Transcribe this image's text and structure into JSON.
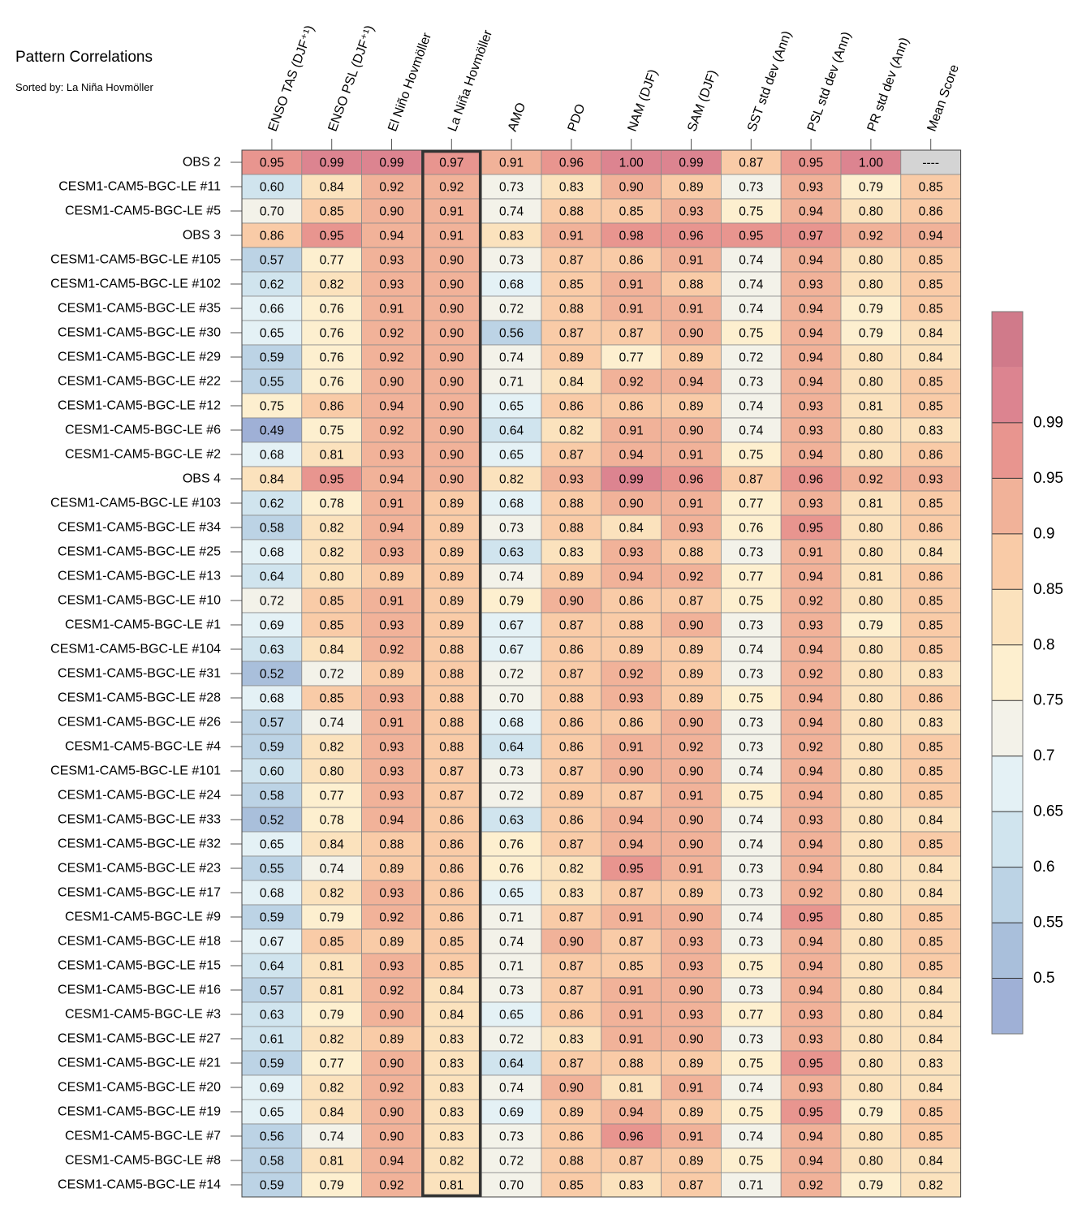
{
  "title": "Pattern Correlations",
  "subtitle": "Sorted by: La Niña Hovmöller",
  "colors": {
    "bins": [
      "#9fb0d6",
      "#a9bfdb",
      "#bcd3e5",
      "#d0e4ee",
      "#e4f1f5",
      "#f3f2e9",
      "#fdefcf",
      "#fbe2bd",
      "#f9cba7",
      "#f1b299",
      "#e8958f",
      "#dc8490",
      "#d07a8a"
    ],
    "missing": "#d4d4d4",
    "highlight_border": "#333333",
    "grid": "#8a8a8a"
  },
  "chart_data": {
    "type": "heatmap",
    "highlight_column": "La Niña Hovmöller",
    "columns": [
      "ENSO TAS (DJF⁺¹)",
      "ENSO PSL (DJF⁺¹)",
      "El Niño Hovmöller",
      "La Niña Hovmöller",
      "AMO",
      "PDO",
      "NAM (DJF)",
      "SAM (DJF)",
      "SST std dev (Ann)",
      "PSL std dev (Ann)",
      "PR std dev (Ann)",
      "Mean Score"
    ],
    "rows": [
      {
        "label": "OBS 2",
        "values": [
          "0.95",
          "0.99",
          "0.99",
          "0.97",
          "0.91",
          "0.96",
          "1.00",
          "0.99",
          "0.87",
          "0.95",
          "1.00",
          "----"
        ]
      },
      {
        "label": "CESM1-CAM5-BGC-LE #11",
        "values": [
          "0.60",
          "0.84",
          "0.92",
          "0.92",
          "0.73",
          "0.83",
          "0.90",
          "0.89",
          "0.73",
          "0.93",
          "0.79",
          "0.85"
        ]
      },
      {
        "label": "CESM1-CAM5-BGC-LE #5",
        "values": [
          "0.70",
          "0.85",
          "0.90",
          "0.91",
          "0.74",
          "0.88",
          "0.85",
          "0.93",
          "0.75",
          "0.94",
          "0.80",
          "0.86"
        ]
      },
      {
        "label": "OBS 3",
        "values": [
          "0.86",
          "0.95",
          "0.94",
          "0.91",
          "0.83",
          "0.91",
          "0.98",
          "0.96",
          "0.95",
          "0.97",
          "0.92",
          "0.94"
        ]
      },
      {
        "label": "CESM1-CAM5-BGC-LE #105",
        "values": [
          "0.57",
          "0.77",
          "0.93",
          "0.90",
          "0.73",
          "0.87",
          "0.86",
          "0.91",
          "0.74",
          "0.94",
          "0.80",
          "0.85"
        ]
      },
      {
        "label": "CESM1-CAM5-BGC-LE #102",
        "values": [
          "0.62",
          "0.82",
          "0.93",
          "0.90",
          "0.68",
          "0.85",
          "0.91",
          "0.88",
          "0.74",
          "0.93",
          "0.80",
          "0.85"
        ]
      },
      {
        "label": "CESM1-CAM5-BGC-LE #35",
        "values": [
          "0.66",
          "0.76",
          "0.91",
          "0.90",
          "0.72",
          "0.88",
          "0.91",
          "0.91",
          "0.74",
          "0.94",
          "0.79",
          "0.85"
        ]
      },
      {
        "label": "CESM1-CAM5-BGC-LE #30",
        "values": [
          "0.65",
          "0.76",
          "0.92",
          "0.90",
          "0.56",
          "0.87",
          "0.87",
          "0.90",
          "0.75",
          "0.94",
          "0.79",
          "0.84"
        ]
      },
      {
        "label": "CESM1-CAM5-BGC-LE #29",
        "values": [
          "0.59",
          "0.76",
          "0.92",
          "0.90",
          "0.74",
          "0.89",
          "0.77",
          "0.89",
          "0.72",
          "0.94",
          "0.80",
          "0.84"
        ]
      },
      {
        "label": "CESM1-CAM5-BGC-LE #22",
        "values": [
          "0.55",
          "0.76",
          "0.90",
          "0.90",
          "0.71",
          "0.84",
          "0.92",
          "0.94",
          "0.73",
          "0.94",
          "0.80",
          "0.85"
        ]
      },
      {
        "label": "CESM1-CAM5-BGC-LE #12",
        "values": [
          "0.75",
          "0.86",
          "0.94",
          "0.90",
          "0.65",
          "0.86",
          "0.86",
          "0.89",
          "0.74",
          "0.93",
          "0.81",
          "0.85"
        ]
      },
      {
        "label": "CESM1-CAM5-BGC-LE #6",
        "values": [
          "0.49",
          "0.75",
          "0.92",
          "0.90",
          "0.64",
          "0.82",
          "0.91",
          "0.90",
          "0.74",
          "0.93",
          "0.80",
          "0.83"
        ]
      },
      {
        "label": "CESM1-CAM5-BGC-LE #2",
        "values": [
          "0.68",
          "0.81",
          "0.93",
          "0.90",
          "0.65",
          "0.87",
          "0.94",
          "0.91",
          "0.75",
          "0.94",
          "0.80",
          "0.86"
        ]
      },
      {
        "label": "OBS 4",
        "values": [
          "0.84",
          "0.95",
          "0.94",
          "0.90",
          "0.82",
          "0.93",
          "0.99",
          "0.96",
          "0.87",
          "0.96",
          "0.92",
          "0.93"
        ]
      },
      {
        "label": "CESM1-CAM5-BGC-LE #103",
        "values": [
          "0.62",
          "0.78",
          "0.91",
          "0.89",
          "0.68",
          "0.88",
          "0.90",
          "0.91",
          "0.77",
          "0.93",
          "0.81",
          "0.85"
        ]
      },
      {
        "label": "CESM1-CAM5-BGC-LE #34",
        "values": [
          "0.58",
          "0.82",
          "0.94",
          "0.89",
          "0.73",
          "0.88",
          "0.84",
          "0.93",
          "0.76",
          "0.95",
          "0.80",
          "0.86"
        ]
      },
      {
        "label": "CESM1-CAM5-BGC-LE #25",
        "values": [
          "0.68",
          "0.82",
          "0.93",
          "0.89",
          "0.63",
          "0.83",
          "0.93",
          "0.88",
          "0.73",
          "0.91",
          "0.80",
          "0.84"
        ]
      },
      {
        "label": "CESM1-CAM5-BGC-LE #13",
        "values": [
          "0.64",
          "0.80",
          "0.89",
          "0.89",
          "0.74",
          "0.89",
          "0.94",
          "0.92",
          "0.77",
          "0.94",
          "0.81",
          "0.86"
        ]
      },
      {
        "label": "CESM1-CAM5-BGC-LE #10",
        "values": [
          "0.72",
          "0.85",
          "0.91",
          "0.89",
          "0.79",
          "0.90",
          "0.86",
          "0.87",
          "0.75",
          "0.92",
          "0.80",
          "0.85"
        ]
      },
      {
        "label": "CESM1-CAM5-BGC-LE #1",
        "values": [
          "0.69",
          "0.85",
          "0.93",
          "0.89",
          "0.67",
          "0.87",
          "0.88",
          "0.90",
          "0.73",
          "0.93",
          "0.79",
          "0.85"
        ]
      },
      {
        "label": "CESM1-CAM5-BGC-LE #104",
        "values": [
          "0.63",
          "0.84",
          "0.92",
          "0.88",
          "0.67",
          "0.86",
          "0.89",
          "0.89",
          "0.74",
          "0.94",
          "0.80",
          "0.85"
        ]
      },
      {
        "label": "CESM1-CAM5-BGC-LE #31",
        "values": [
          "0.52",
          "0.72",
          "0.89",
          "0.88",
          "0.72",
          "0.87",
          "0.92",
          "0.89",
          "0.73",
          "0.92",
          "0.80",
          "0.83"
        ]
      },
      {
        "label": "CESM1-CAM5-BGC-LE #28",
        "values": [
          "0.68",
          "0.85",
          "0.93",
          "0.88",
          "0.70",
          "0.88",
          "0.93",
          "0.89",
          "0.75",
          "0.94",
          "0.80",
          "0.86"
        ]
      },
      {
        "label": "CESM1-CAM5-BGC-LE #26",
        "values": [
          "0.57",
          "0.74",
          "0.91",
          "0.88",
          "0.68",
          "0.86",
          "0.86",
          "0.90",
          "0.73",
          "0.94",
          "0.80",
          "0.83"
        ]
      },
      {
        "label": "CESM1-CAM5-BGC-LE #4",
        "values": [
          "0.59",
          "0.82",
          "0.93",
          "0.88",
          "0.64",
          "0.86",
          "0.91",
          "0.92",
          "0.73",
          "0.92",
          "0.80",
          "0.85"
        ]
      },
      {
        "label": "CESM1-CAM5-BGC-LE #101",
        "values": [
          "0.60",
          "0.80",
          "0.93",
          "0.87",
          "0.73",
          "0.87",
          "0.90",
          "0.90",
          "0.74",
          "0.94",
          "0.80",
          "0.85"
        ]
      },
      {
        "label": "CESM1-CAM5-BGC-LE #24",
        "values": [
          "0.58",
          "0.77",
          "0.93",
          "0.87",
          "0.72",
          "0.89",
          "0.87",
          "0.91",
          "0.75",
          "0.94",
          "0.80",
          "0.85"
        ]
      },
      {
        "label": "CESM1-CAM5-BGC-LE #33",
        "values": [
          "0.52",
          "0.78",
          "0.94",
          "0.86",
          "0.63",
          "0.86",
          "0.94",
          "0.90",
          "0.74",
          "0.93",
          "0.80",
          "0.84"
        ]
      },
      {
        "label": "CESM1-CAM5-BGC-LE #32",
        "values": [
          "0.65",
          "0.84",
          "0.88",
          "0.86",
          "0.76",
          "0.87",
          "0.94",
          "0.90",
          "0.74",
          "0.94",
          "0.80",
          "0.85"
        ]
      },
      {
        "label": "CESM1-CAM5-BGC-LE #23",
        "values": [
          "0.55",
          "0.74",
          "0.89",
          "0.86",
          "0.76",
          "0.82",
          "0.95",
          "0.91",
          "0.73",
          "0.94",
          "0.80",
          "0.84"
        ]
      },
      {
        "label": "CESM1-CAM5-BGC-LE #17",
        "values": [
          "0.68",
          "0.82",
          "0.93",
          "0.86",
          "0.65",
          "0.83",
          "0.87",
          "0.89",
          "0.73",
          "0.92",
          "0.80",
          "0.84"
        ]
      },
      {
        "label": "CESM1-CAM5-BGC-LE #9",
        "values": [
          "0.59",
          "0.79",
          "0.92",
          "0.86",
          "0.71",
          "0.87",
          "0.91",
          "0.90",
          "0.74",
          "0.95",
          "0.80",
          "0.85"
        ]
      },
      {
        "label": "CESM1-CAM5-BGC-LE #18",
        "values": [
          "0.67",
          "0.85",
          "0.89",
          "0.85",
          "0.74",
          "0.90",
          "0.87",
          "0.93",
          "0.73",
          "0.94",
          "0.80",
          "0.85"
        ]
      },
      {
        "label": "CESM1-CAM5-BGC-LE #15",
        "values": [
          "0.64",
          "0.81",
          "0.93",
          "0.85",
          "0.71",
          "0.87",
          "0.85",
          "0.93",
          "0.75",
          "0.94",
          "0.80",
          "0.85"
        ]
      },
      {
        "label": "CESM1-CAM5-BGC-LE #16",
        "values": [
          "0.57",
          "0.81",
          "0.92",
          "0.84",
          "0.73",
          "0.87",
          "0.91",
          "0.90",
          "0.73",
          "0.94",
          "0.80",
          "0.84"
        ]
      },
      {
        "label": "CESM1-CAM5-BGC-LE #3",
        "values": [
          "0.63",
          "0.79",
          "0.90",
          "0.84",
          "0.65",
          "0.86",
          "0.91",
          "0.93",
          "0.77",
          "0.93",
          "0.80",
          "0.84"
        ]
      },
      {
        "label": "CESM1-CAM5-BGC-LE #27",
        "values": [
          "0.61",
          "0.82",
          "0.89",
          "0.83",
          "0.72",
          "0.83",
          "0.91",
          "0.90",
          "0.73",
          "0.93",
          "0.80",
          "0.84"
        ]
      },
      {
        "label": "CESM1-CAM5-BGC-LE #21",
        "values": [
          "0.59",
          "0.77",
          "0.90",
          "0.83",
          "0.64",
          "0.87",
          "0.88",
          "0.89",
          "0.75",
          "0.95",
          "0.80",
          "0.83"
        ]
      },
      {
        "label": "CESM1-CAM5-BGC-LE #20",
        "values": [
          "0.69",
          "0.82",
          "0.92",
          "0.83",
          "0.74",
          "0.90",
          "0.81",
          "0.91",
          "0.74",
          "0.93",
          "0.80",
          "0.84"
        ]
      },
      {
        "label": "CESM1-CAM5-BGC-LE #19",
        "values": [
          "0.65",
          "0.84",
          "0.90",
          "0.83",
          "0.69",
          "0.89",
          "0.94",
          "0.89",
          "0.75",
          "0.95",
          "0.79",
          "0.85"
        ]
      },
      {
        "label": "CESM1-CAM5-BGC-LE #7",
        "values": [
          "0.56",
          "0.74",
          "0.90",
          "0.83",
          "0.73",
          "0.86",
          "0.96",
          "0.91",
          "0.74",
          "0.94",
          "0.80",
          "0.85"
        ]
      },
      {
        "label": "CESM1-CAM5-BGC-LE #8",
        "values": [
          "0.58",
          "0.81",
          "0.94",
          "0.82",
          "0.72",
          "0.88",
          "0.87",
          "0.89",
          "0.75",
          "0.94",
          "0.80",
          "0.84"
        ]
      },
      {
        "label": "CESM1-CAM5-BGC-LE #14",
        "values": [
          "0.59",
          "0.79",
          "0.92",
          "0.81",
          "0.70",
          "0.85",
          "0.83",
          "0.87",
          "0.71",
          "0.92",
          "0.79",
          "0.82"
        ]
      }
    ],
    "colorbar": {
      "levels": [
        0.5,
        0.55,
        0.6,
        0.65,
        0.7,
        0.75,
        0.8,
        0.85,
        0.9,
        0.95,
        0.99
      ],
      "labels": [
        "0.5",
        "0.55",
        "0.6",
        "0.65",
        "0.7",
        "0.75",
        "0.8",
        "0.85",
        "0.9",
        "0.95",
        "0.99"
      ]
    }
  }
}
